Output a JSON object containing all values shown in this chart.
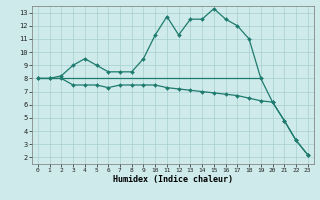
{
  "xlabel": "Humidex (Indice chaleur)",
  "bg_color": "#ceeaea",
  "line_color": "#1e7b6e",
  "grid_color": "#a8d0d0",
  "xlim": [
    -0.5,
    23.5
  ],
  "ylim": [
    1.5,
    13.5
  ],
  "xticks": [
    0,
    1,
    2,
    3,
    4,
    5,
    6,
    7,
    8,
    9,
    10,
    11,
    12,
    13,
    14,
    15,
    16,
    17,
    18,
    19,
    20,
    21,
    22,
    23
  ],
  "yticks": [
    2,
    3,
    4,
    5,
    6,
    7,
    8,
    9,
    10,
    11,
    12,
    13
  ],
  "series": [
    {
      "x": [
        0,
        1,
        2,
        3,
        4,
        5,
        6,
        7,
        8,
        9,
        10,
        11,
        12,
        13,
        14,
        15,
        16,
        17,
        18,
        19,
        20,
        21,
        22,
        23
      ],
      "y": [
        8,
        8,
        8.2,
        9.0,
        9.5,
        9.0,
        8.5,
        8.5,
        8.5,
        9.5,
        11.3,
        12.7,
        11.3,
        12.5,
        12.5,
        13.3,
        12.5,
        12.0,
        11.0,
        8.0,
        6.2,
        4.8,
        3.3,
        2.2
      ],
      "marker": "D",
      "markersize": 2.0,
      "linewidth": 0.9
    },
    {
      "x": [
        0,
        19
      ],
      "y": [
        8,
        8
      ],
      "marker": null,
      "markersize": 0,
      "linewidth": 0.9
    },
    {
      "x": [
        0,
        1,
        2,
        3,
        4,
        5,
        6,
        7,
        8,
        9,
        10,
        11,
        12,
        13,
        14,
        15,
        16,
        17,
        18,
        19,
        20,
        21,
        22,
        23
      ],
      "y": [
        8,
        8,
        8,
        7.5,
        7.5,
        7.5,
        7.3,
        7.5,
        7.5,
        7.5,
        7.5,
        7.3,
        7.2,
        7.1,
        7.0,
        6.9,
        6.8,
        6.7,
        6.5,
        6.3,
        6.2,
        4.8,
        3.3,
        2.2
      ],
      "marker": "D",
      "markersize": 2.0,
      "linewidth": 0.9
    }
  ]
}
